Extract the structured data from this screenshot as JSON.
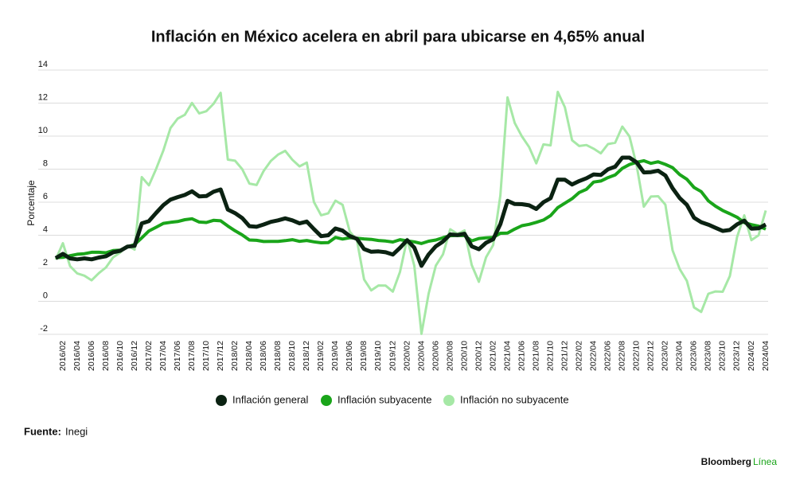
{
  "chart_data": {
    "type": "line",
    "title": "Inflación en México acelera en abril para ubicarse en 4,65% anual",
    "y_label": "Porcentaje",
    "categories": [
      null,
      "2016/02",
      null,
      "2016/04",
      null,
      "2016/06",
      null,
      "2016/08",
      null,
      "2016/10",
      null,
      "2016/12",
      null,
      "2017/02",
      null,
      "2017/04",
      null,
      "2017/06",
      null,
      "2017/08",
      null,
      "2017/10",
      null,
      "2017/12",
      null,
      "2018/02",
      null,
      "2018/04",
      null,
      "2018/06",
      null,
      "2018/08",
      null,
      "2018/10",
      null,
      "2018/12",
      null,
      "2019/02",
      null,
      "2019/04",
      null,
      "2019/06",
      null,
      "2019/08",
      null,
      "2019/10",
      null,
      "2019/12",
      null,
      "2020/02",
      null,
      "2020/04",
      null,
      "2020/06",
      null,
      "2020/08",
      null,
      "2020/10",
      null,
      "2020/12",
      null,
      "2021/02",
      null,
      "2021/04",
      null,
      "2021/06",
      null,
      "2021/08",
      null,
      "2021/10",
      null,
      "2021/12",
      null,
      "2022/02",
      null,
      "2022/04",
      null,
      "2022/06",
      null,
      "2022/08",
      null,
      "2022/10",
      null,
      "2022/12",
      null,
      "2023/02",
      null,
      "2023/04",
      null,
      "2023/06",
      null,
      "2023/08",
      null,
      "2023/10",
      null,
      "2023/12",
      null,
      "2024/02",
      null,
      "2024/04"
    ],
    "series": [
      {
        "name": "Inflación general",
        "color": "#0b2212",
        "width": 5,
        "values": [
          2.61,
          2.87,
          2.6,
          2.54,
          2.6,
          2.54,
          2.65,
          2.73,
          2.97,
          3.06,
          3.31,
          3.36,
          4.72,
          4.86,
          5.35,
          5.82,
          6.16,
          6.31,
          6.44,
          6.66,
          6.35,
          6.37,
          6.63,
          6.77,
          5.55,
          5.34,
          5.04,
          4.55,
          4.51,
          4.65,
          4.81,
          4.9,
          5.02,
          4.9,
          4.72,
          4.83,
          4.37,
          3.94,
          4.0,
          4.41,
          4.28,
          3.95,
          3.78,
          3.16,
          3.0,
          3.02,
          2.97,
          2.83,
          3.24,
          3.7,
          3.25,
          2.15,
          2.84,
          3.33,
          3.62,
          4.05,
          4.01,
          4.09,
          3.33,
          3.15,
          3.54,
          3.76,
          4.67,
          6.08,
          5.89,
          5.88,
          5.81,
          5.59,
          6.0,
          6.24,
          7.37,
          7.36,
          7.07,
          7.28,
          7.45,
          7.68,
          7.65,
          7.99,
          8.15,
          8.7,
          8.7,
          8.41,
          7.8,
          7.82,
          7.91,
          7.62,
          6.85,
          6.25,
          5.84,
          5.06,
          4.79,
          4.64,
          4.45,
          4.26,
          4.32,
          4.66,
          4.88,
          4.4,
          4.42,
          4.65
        ]
      },
      {
        "name": "Inflación subyacente",
        "color": "#1aa51a",
        "width": 4,
        "values": [
          2.64,
          2.66,
          2.76,
          2.85,
          2.88,
          2.97,
          2.97,
          2.94,
          3.07,
          3.1,
          3.29,
          3.44,
          3.84,
          4.26,
          4.48,
          4.72,
          4.78,
          4.83,
          4.94,
          5.0,
          4.8,
          4.77,
          4.9,
          4.87,
          4.56,
          4.27,
          4.02,
          3.71,
          3.69,
          3.62,
          3.63,
          3.63,
          3.67,
          3.73,
          3.63,
          3.68,
          3.6,
          3.54,
          3.55,
          3.87,
          3.77,
          3.85,
          3.82,
          3.78,
          3.75,
          3.68,
          3.65,
          3.59,
          3.73,
          3.66,
          3.6,
          3.5,
          3.64,
          3.71,
          3.85,
          3.97,
          3.99,
          3.98,
          3.66,
          3.8,
          3.84,
          3.87,
          4.12,
          4.13,
          4.37,
          4.58,
          4.66,
          4.78,
          4.92,
          5.19,
          5.67,
          5.94,
          6.21,
          6.59,
          6.78,
          7.22,
          7.28,
          7.49,
          7.65,
          8.05,
          8.28,
          8.42,
          8.51,
          8.35,
          8.45,
          8.29,
          8.09,
          7.67,
          7.39,
          6.89,
          6.64,
          6.08,
          5.76,
          5.5,
          5.3,
          5.09,
          4.76,
          4.64,
          4.55,
          4.37
        ]
      },
      {
        "name": "Inflación no subyacente",
        "color": "#a6e8a6",
        "width": 3,
        "values": [
          2.53,
          3.52,
          2.13,
          1.69,
          1.55,
          1.27,
          1.7,
          2.05,
          2.66,
          2.96,
          3.37,
          3.13,
          7.52,
          7.02,
          8.01,
          9.13,
          10.49,
          11.06,
          11.29,
          12.01,
          11.38,
          11.51,
          11.95,
          12.62,
          8.58,
          8.51,
          8.0,
          7.13,
          7.04,
          7.9,
          8.5,
          8.88,
          9.11,
          8.57,
          8.17,
          8.4,
          6.01,
          5.21,
          5.33,
          6.09,
          5.84,
          4.22,
          3.7,
          1.32,
          0.66,
          0.96,
          0.95,
          0.59,
          1.78,
          3.78,
          2.15,
          -1.97,
          0.47,
          2.16,
          2.84,
          4.36,
          4.08,
          4.29,
          2.2,
          1.18,
          2.66,
          3.41,
          6.41,
          12.34,
          10.8,
          9.98,
          9.34,
          8.35,
          9.5,
          9.44,
          12.68,
          11.74,
          9.75,
          9.4,
          9.46,
          9.24,
          8.96,
          9.52,
          9.6,
          10.58,
          9.98,
          8.23,
          5.73,
          6.34,
          6.36,
          5.85,
          3.09,
          1.95,
          1.24,
          -0.37,
          -0.64,
          0.46,
          0.6,
          0.58,
          1.53,
          3.9,
          5.2,
          3.7,
          4.0,
          5.5
        ]
      }
    ],
    "ylim": [
      -2,
      14
    ],
    "yticks": [
      -2,
      0,
      2,
      4,
      6,
      8,
      10,
      12,
      14
    ],
    "grid": true,
    "legend": "bottom"
  },
  "source_label": "Fuente:",
  "source": "Inegi",
  "brand": "Bloomberg",
  "brand_accent": "Línea"
}
